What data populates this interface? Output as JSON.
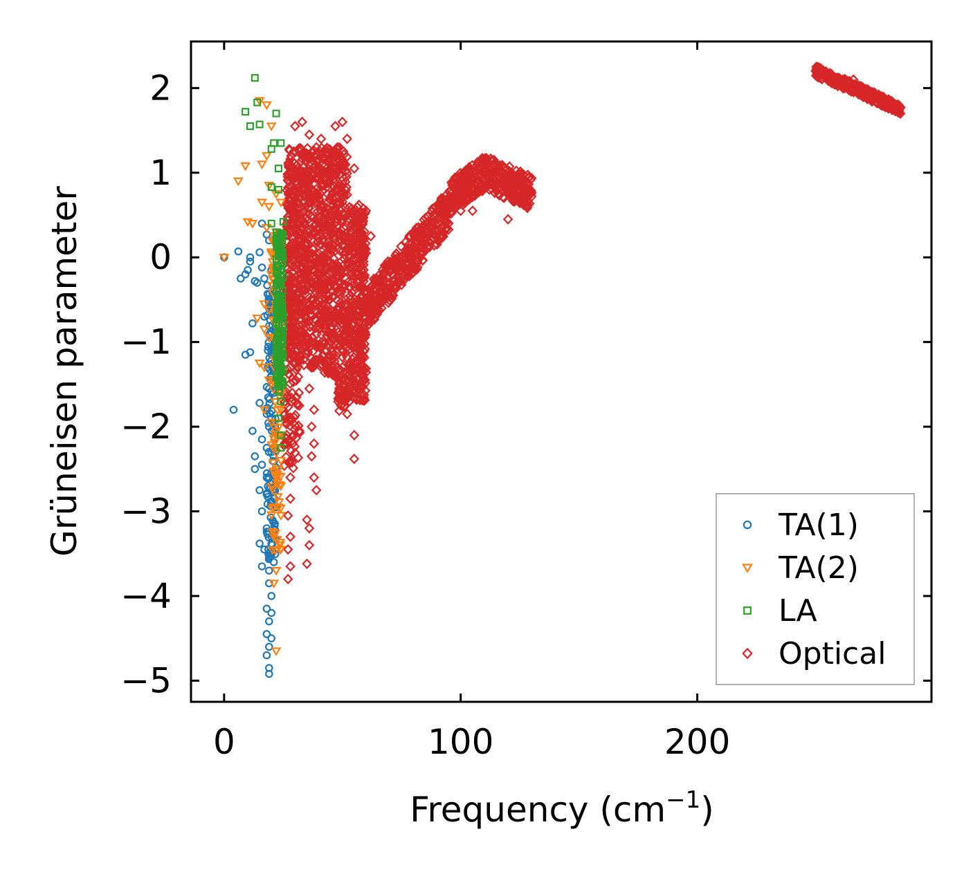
{
  "chart_data": {
    "type": "scatter",
    "title": "",
    "xlabel": "Frequency (cm",
    "xlabel_superscript": "−1",
    "xlabel_suffix": ")",
    "ylabel": "Grüneisen parameter",
    "xlim": [
      -14,
      299
    ],
    "ylim": [
      -5.25,
      2.55
    ],
    "x_ticks": [
      0,
      100,
      200
    ],
    "x_tick_labels": [
      "0",
      "100",
      "200"
    ],
    "y_ticks": [
      2,
      1,
      0,
      -1,
      -2,
      -3,
      -4,
      -5
    ],
    "y_tick_labels": [
      "2",
      "1",
      "0",
      "−1",
      "−2",
      "−3",
      "−4",
      "−5"
    ],
    "grid": false,
    "legend_position": "bottom-right",
    "series": [
      {
        "name": "TA(1)",
        "marker": "circle",
        "color": "#1f77b4",
        "points": [
          [
            0,
            0
          ],
          [
            6,
            0.07
          ],
          [
            7,
            -0.25
          ],
          [
            9,
            -0.2
          ],
          [
            10,
            -0.15
          ],
          [
            11,
            0
          ],
          [
            11,
            -0.05
          ],
          [
            13,
            -0.28
          ],
          [
            14,
            -0.3
          ],
          [
            15,
            0.06
          ],
          [
            16,
            -0.12
          ],
          [
            17,
            -0.25
          ],
          [
            16,
            0.4
          ],
          [
            18,
            0.27
          ],
          [
            19,
            0.2
          ],
          [
            20,
            -0.15
          ],
          [
            22,
            -0.02
          ],
          [
            12,
            -0.78
          ],
          [
            9,
            -1.15
          ],
          [
            11,
            -1.12
          ],
          [
            17,
            -0.7
          ],
          [
            19,
            -0.6
          ],
          [
            21,
            -0.55
          ],
          [
            20,
            -0.9
          ],
          [
            20,
            -1.1
          ],
          [
            21,
            -1.3
          ],
          [
            22,
            -1.32
          ],
          [
            20,
            -1.4
          ],
          [
            19,
            -1.55
          ],
          [
            21,
            -1.6
          ],
          [
            4,
            -1.8
          ],
          [
            15,
            -1.72
          ],
          [
            18,
            -1.85
          ],
          [
            20,
            -1.9
          ],
          [
            19,
            -2
          ],
          [
            12,
            -2.05
          ],
          [
            16,
            -2.15
          ],
          [
            18,
            -2.25
          ],
          [
            20,
            -2.3
          ],
          [
            22,
            -2.28
          ],
          [
            13,
            -2.35
          ],
          [
            13,
            -2.5
          ],
          [
            16,
            -2.45
          ],
          [
            18,
            -2.6
          ],
          [
            21,
            -2.55
          ],
          [
            15,
            -2.75
          ],
          [
            18,
            -2.8
          ],
          [
            20,
            -2.9
          ],
          [
            22,
            -2.95
          ],
          [
            16,
            -3
          ],
          [
            18,
            -3.2
          ],
          [
            20,
            -3.3
          ],
          [
            15,
            -3.38
          ],
          [
            17,
            -3.45
          ],
          [
            19,
            -3.55
          ],
          [
            21,
            -3.6
          ],
          [
            16,
            -3.65
          ],
          [
            19,
            -3.7
          ],
          [
            19,
            -3.85
          ],
          [
            20,
            -4
          ],
          [
            18,
            -4.15
          ],
          [
            20,
            -4.2
          ],
          [
            19,
            -4.3
          ],
          [
            18,
            -4.45
          ],
          [
            20,
            -4.5
          ],
          [
            19,
            -4.6
          ],
          [
            18,
            -4.7
          ],
          [
            19,
            -4.85
          ],
          [
            19,
            -4.92
          ]
        ]
      },
      {
        "name": "TA(2)",
        "marker": "triangle-down",
        "color": "#ff7f0e",
        "points": [
          [
            0,
            0
          ],
          [
            6,
            0.9
          ],
          [
            9,
            1.08
          ],
          [
            15,
            1.85
          ],
          [
            18,
            1.8
          ],
          [
            20,
            1.55
          ],
          [
            16,
            1.1
          ],
          [
            18,
            1.2
          ],
          [
            19,
            0.85
          ],
          [
            22,
            0.75
          ],
          [
            16,
            0.65
          ],
          [
            19,
            0.6
          ],
          [
            24,
            0.65
          ],
          [
            10,
            0.42
          ],
          [
            12,
            0.4
          ],
          [
            18,
            0.35
          ],
          [
            22,
            0.3
          ],
          [
            24,
            0.1
          ],
          [
            20,
            -0.2
          ],
          [
            22,
            -0.3
          ],
          [
            17,
            -0.55
          ],
          [
            19,
            -0.62
          ],
          [
            22,
            -0.75
          ],
          [
            24,
            -0.8
          ],
          [
            14,
            -0.72
          ],
          [
            17,
            -0.85
          ],
          [
            19,
            -0.95
          ],
          [
            22,
            -1
          ],
          [
            24,
            -1.1
          ],
          [
            15,
            -1.25
          ],
          [
            17,
            -1.3
          ],
          [
            19,
            -1.45
          ],
          [
            22,
            -1.5
          ],
          [
            24,
            -1.6
          ],
          [
            17,
            -1.8
          ],
          [
            20,
            -1.95
          ],
          [
            22,
            -2.05
          ],
          [
            24,
            -2.1
          ],
          [
            21,
            -2.25
          ],
          [
            24,
            -2.4
          ],
          [
            22,
            -2.6
          ],
          [
            24,
            -2.7
          ],
          [
            21,
            -2.95
          ],
          [
            24,
            -3.05
          ],
          [
            21,
            -3.3
          ],
          [
            24,
            -3.45
          ],
          [
            22,
            -3.7
          ],
          [
            21,
            -3.85
          ],
          [
            22,
            -4.65
          ]
        ]
      },
      {
        "name": "LA",
        "marker": "square",
        "color": "#2ca02c",
        "points": [
          [
            13,
            2.12
          ],
          [
            9,
            1.72
          ],
          [
            11,
            1.55
          ],
          [
            14,
            1.83
          ],
          [
            15,
            1.57
          ],
          [
            22,
            1.7
          ],
          [
            20,
            1.28
          ],
          [
            21,
            1.35
          ],
          [
            24,
            1.35
          ],
          [
            23,
            1.05
          ],
          [
            20,
            0.83
          ],
          [
            23,
            0.8
          ],
          [
            20,
            0.4
          ],
          [
            25,
            0.42
          ],
          [
            22,
            0.2
          ],
          [
            24,
            0.1
          ],
          [
            23,
            -0.1
          ],
          [
            24,
            -0.3
          ],
          [
            23,
            -0.5
          ],
          [
            24,
            -0.7
          ],
          [
            24,
            -0.9
          ],
          [
            23,
            -1.1
          ],
          [
            24,
            -1.3
          ],
          [
            23,
            -1.5
          ],
          [
            24,
            -1.7
          ],
          [
            23,
            -1.9
          ],
          [
            24,
            -2.1
          ],
          [
            24,
            -2.25
          ]
        ]
      },
      {
        "name": "Optical",
        "marker": "diamond",
        "color": "#d62728",
        "points": [
          [
            30,
            1.55
          ],
          [
            33,
            1.6
          ],
          [
            36,
            1.45
          ],
          [
            39,
            1.3
          ],
          [
            41,
            1.4
          ],
          [
            44,
            1.2
          ],
          [
            47,
            1.55
          ],
          [
            50,
            1.6
          ],
          [
            52,
            1.4
          ],
          [
            35,
            1.2
          ],
          [
            40,
            1
          ],
          [
            45,
            1.1
          ],
          [
            48,
            1.3
          ],
          [
            55,
            1.05
          ],
          [
            30,
            0.8
          ],
          [
            42,
            0.85
          ],
          [
            55,
            0.55
          ],
          [
            57,
            0.62
          ],
          [
            60,
            0.55
          ],
          [
            58,
            0.3
          ],
          [
            62,
            0.25
          ],
          [
            60,
            0.05
          ],
          [
            58,
            -0.15
          ],
          [
            62,
            -0.4
          ],
          [
            60,
            -0.6
          ],
          [
            58,
            -0.9
          ],
          [
            57,
            -1.1
          ],
          [
            56,
            -1.3
          ],
          [
            55,
            -1.5
          ],
          [
            53,
            -1.7
          ],
          [
            52,
            -1.85
          ],
          [
            55,
            -2.1
          ],
          [
            55,
            -2.38
          ],
          [
            33,
            -0.55
          ],
          [
            35,
            -1.1
          ],
          [
            37,
            -1.3
          ],
          [
            36,
            -1.55
          ],
          [
            38,
            -1.8
          ],
          [
            37,
            -2
          ],
          [
            38,
            -2.2
          ],
          [
            37,
            -2.35
          ],
          [
            38,
            -2.6
          ],
          [
            39,
            -2.75
          ],
          [
            28,
            -2.4
          ],
          [
            28,
            -2.6
          ],
          [
            28,
            -2.85
          ],
          [
            27,
            -3.05
          ],
          [
            28,
            -3.3
          ],
          [
            27,
            -3.45
          ],
          [
            28,
            -3.65
          ],
          [
            27,
            -3.8
          ],
          [
            35,
            -3.1
          ],
          [
            36,
            -3.2
          ],
          [
            36,
            -3.4
          ],
          [
            35,
            -3.62
          ],
          [
            65,
            -0.5
          ],
          [
            70,
            -0.3
          ],
          [
            75,
            -0.05
          ],
          [
            78,
            0.1
          ],
          [
            82,
            0.3
          ],
          [
            85,
            0.2
          ],
          [
            88,
            0.35
          ],
          [
            90,
            0.5
          ],
          [
            93,
            0.6
          ],
          [
            96,
            0.7
          ],
          [
            99,
            0.8
          ],
          [
            102,
            0.9
          ],
          [
            105,
            0.95
          ],
          [
            108,
            1.05
          ],
          [
            110,
            1.1
          ],
          [
            113,
            0.9
          ],
          [
            116,
            0.8
          ],
          [
            119,
            0.88
          ],
          [
            122,
            0.82
          ],
          [
            125,
            0.78
          ],
          [
            128,
            0.75
          ],
          [
            130,
            0.72
          ],
          [
            100,
            0.55
          ],
          [
            105,
            0.55
          ],
          [
            120,
            0.45
          ],
          [
            250,
            2.2
          ],
          [
            254,
            2.16
          ],
          [
            258,
            2.12
          ],
          [
            262,
            2.08
          ],
          [
            266,
            2.1
          ],
          [
            270,
            2.0
          ],
          [
            274,
            1.95
          ],
          [
            278,
            1.9
          ],
          [
            282,
            1.82
          ],
          [
            286,
            1.77
          ]
        ],
        "clusters": [
          {
            "x_range": [
              26,
              60
            ],
            "y_range": [
              -1.8,
              1.3
            ],
            "n": 1400
          },
          {
            "x_range": [
              25,
              32
            ],
            "y_range": [
              -2.5,
              -0.2
            ],
            "n": 120
          },
          {
            "x_range": [
              60,
              95
            ],
            "y_ranges_note": "rising band",
            "n": 300
          },
          {
            "x_range": [
              95,
              130
            ],
            "y_range": [
              0.5,
              1.05
            ],
            "n": 320
          },
          {
            "x_range": [
              250,
              286
            ],
            "y_range": [
              1.75,
              2.2
            ],
            "n": 300
          }
        ]
      }
    ]
  }
}
